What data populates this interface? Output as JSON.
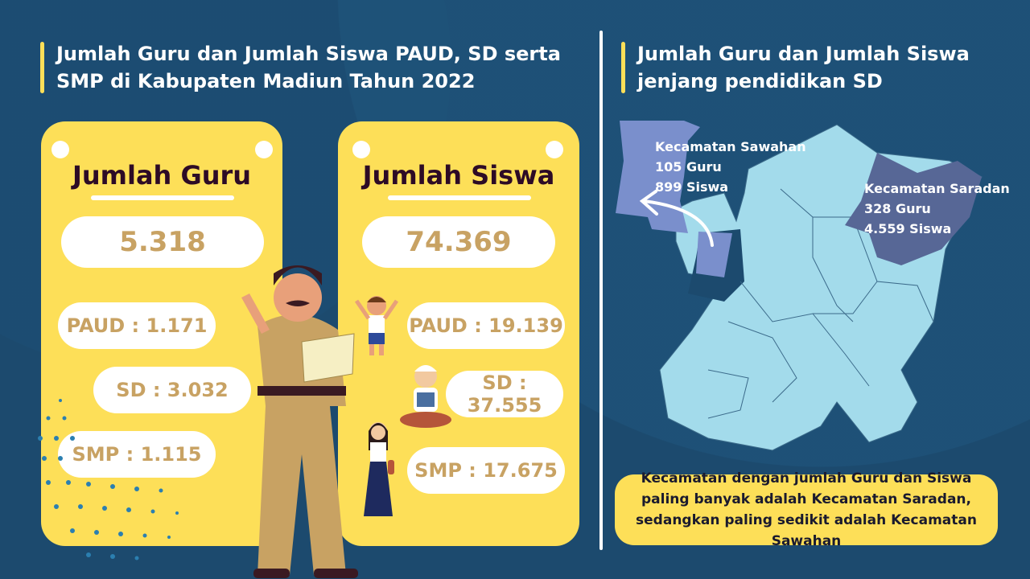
{
  "left": {
    "title_line1": "Jumlah Guru dan Jumlah Siswa PAUD, SD serta",
    "title_line2": "SMP di Kabupaten Madiun Tahun 2022",
    "guru": {
      "heading": "Jumlah Guru",
      "total": "5.318",
      "paud": "PAUD : 1.171",
      "sd": "SD : 3.032",
      "smp": "SMP : 1.115"
    },
    "siswa": {
      "heading": "Jumlah Siswa",
      "total": "74.369",
      "paud": "PAUD : 19.139",
      "sd": "SD : 37.555",
      "smp": "SMP : 17.675"
    }
  },
  "right": {
    "title_line1": "Jumlah Guru dan Jumlah Siswa",
    "title_line2": "jenjang pendidikan SD",
    "sawahan": {
      "name": "Kecamatan Sawahan",
      "guru": "105 Guru",
      "siswa": "899 Siswa"
    },
    "saradan": {
      "name": "Kecamatan Saradan",
      "guru": "328 Guru",
      "siswa": "4.559 Siswa"
    },
    "note": "Kecamatan dengan jumlah Guru dan Siswa paling banyak adalah Kecamatan Saradan, sedangkan paling sedikit adalah Kecamatan Sawahan"
  },
  "colors": {
    "background": "#1c4a6e",
    "card": "#fddf58",
    "number": "#c8a263",
    "map_base": "#a3dbeb",
    "sawahan": "#7a8fcc",
    "saradan": "#576796"
  }
}
